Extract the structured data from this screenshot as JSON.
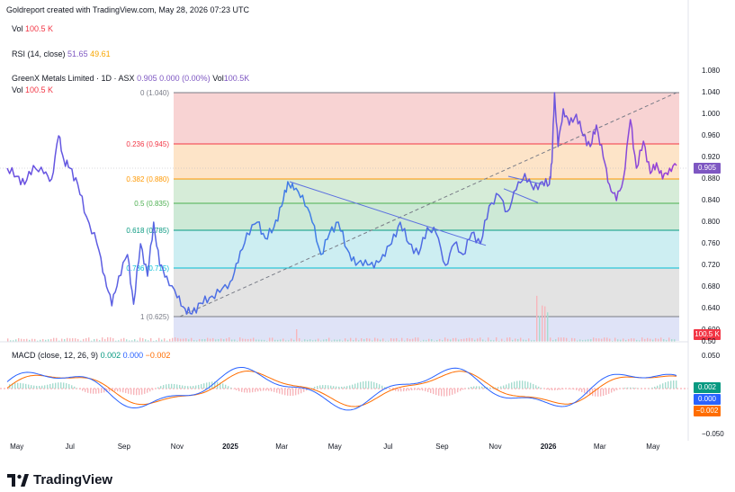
{
  "attribution": "Goldreport created with TradingView.com, May 28, 2026 07:23 UTC",
  "vol_top": {
    "label": "Vol",
    "value": "100.5 K"
  },
  "rsi": {
    "label": "RSI (14, close)",
    "v1": "51.65",
    "v2": "49.61"
  },
  "symbol": {
    "name": "GreenX Metals Limited · 1D · ASX",
    "price": "0.905",
    "change": "0.000 (0.00%)",
    "vol_label": "Vol",
    "vol_value": "100.5K"
  },
  "vol_row": {
    "label": "Vol",
    "value": "100.5 K"
  },
  "macd": {
    "label": "MACD (close, 12, 26, 9)",
    "v1": "0.002",
    "v2": "0.000",
    "v3": "−0.002"
  },
  "logo": "TradingView",
  "colors": {
    "line": "#5b6fe0",
    "accent": "#7e57c2",
    "macd": "#2962ff",
    "signal": "#ff6d00"
  },
  "chart_data": {
    "type": "line",
    "price_axis": [
      "1.080",
      "1.040",
      "1.000",
      "0.960",
      "0.920",
      "0.880",
      "0.840",
      "0.800",
      "0.760",
      "0.720",
      "0.680",
      "0.640",
      "0.600"
    ],
    "ylim": [
      0.6,
      1.08
    ],
    "x_labels": [
      {
        "text": "May",
        "date": "2024-05-01",
        "bold": false
      },
      {
        "text": "Jul",
        "date": "2024-07-01",
        "bold": false
      },
      {
        "text": "Sep",
        "date": "2024-09-01",
        "bold": false
      },
      {
        "text": "Nov",
        "date": "2024-11-01",
        "bold": false
      },
      {
        "text": "2025",
        "date": "2025-01-01",
        "bold": true
      },
      {
        "text": "Mar",
        "date": "2025-03-01",
        "bold": false
      },
      {
        "text": "May",
        "date": "2025-05-01",
        "bold": false
      },
      {
        "text": "Jul",
        "date": "2025-07-01",
        "bold": false
      },
      {
        "text": "Sep",
        "date": "2025-09-01",
        "bold": false
      },
      {
        "text": "Nov",
        "date": "2025-11-01",
        "bold": false
      },
      {
        "text": "2026",
        "date": "2026-01-01",
        "bold": true
      },
      {
        "text": "Mar",
        "date": "2026-03-01",
        "bold": false
      },
      {
        "text": "May",
        "date": "2026-05-01",
        "bold": false
      }
    ],
    "fib_levels": [
      {
        "label": "0 (1.040)",
        "value": 1.04,
        "color": "#787b86",
        "fill": "#f8d3d3"
      },
      {
        "label": "0.236 (0.945)",
        "value": 0.945,
        "color": "#f23645",
        "fill": "#fde4c8"
      },
      {
        "label": "0.382 (0.880)",
        "value": 0.88,
        "color": "#ff9800",
        "fill": "#d6ecd8"
      },
      {
        "label": "0.5 (0.835)",
        "value": 0.835,
        "color": "#4caf50",
        "fill": "#cde9d6"
      },
      {
        "label": "0.618 (0.785)",
        "value": 0.785,
        "color": "#089981",
        "fill": "#cdeef2"
      },
      {
        "label": "0.786 (0.715)",
        "value": 0.715,
        "color": "#00bcd4",
        "fill": "#e3e3e3"
      },
      {
        "label": "1 (0.625)",
        "value": 0.625,
        "color": "#787b86",
        "fill": "#dfe3f7"
      }
    ],
    "series": [
      {
        "values": [
          [
            "2024-04-20",
            0.9
          ],
          [
            "2024-05-01",
            0.885
          ],
          [
            "2024-05-10",
            0.87
          ],
          [
            "2024-05-20",
            0.905
          ],
          [
            "2024-06-01",
            0.89
          ],
          [
            "2024-06-10",
            0.88
          ],
          [
            "2024-06-18",
            0.96
          ],
          [
            "2024-06-24",
            0.915
          ],
          [
            "2024-07-01",
            0.9
          ],
          [
            "2024-07-10",
            0.87
          ],
          [
            "2024-07-20",
            0.81
          ],
          [
            "2024-08-01",
            0.76
          ],
          [
            "2024-08-10",
            0.7
          ],
          [
            "2024-08-18",
            0.645
          ],
          [
            "2024-08-26",
            0.7
          ],
          [
            "2024-09-05",
            0.74
          ],
          [
            "2024-09-12",
            0.648
          ],
          [
            "2024-09-20",
            0.76
          ],
          [
            "2024-09-28",
            0.7
          ],
          [
            "2024-10-05",
            0.8
          ],
          [
            "2024-10-12",
            0.72
          ],
          [
            "2024-10-20",
            0.7
          ],
          [
            "2024-11-01",
            0.66
          ],
          [
            "2024-11-10",
            0.64
          ],
          [
            "2024-11-18",
            0.63
          ],
          [
            "2024-11-28",
            0.65
          ],
          [
            "2024-12-08",
            0.66
          ],
          [
            "2024-12-20",
            0.67
          ],
          [
            "2025-01-01",
            0.69
          ],
          [
            "2025-01-10",
            0.725
          ],
          [
            "2025-01-20",
            0.78
          ],
          [
            "2025-02-01",
            0.8
          ],
          [
            "2025-02-10",
            0.77
          ],
          [
            "2025-02-20",
            0.79
          ],
          [
            "2025-03-01",
            0.83
          ],
          [
            "2025-03-08",
            0.875
          ],
          [
            "2025-03-15",
            0.86
          ],
          [
            "2025-03-25",
            0.85
          ],
          [
            "2025-04-05",
            0.8
          ],
          [
            "2025-04-15",
            0.74
          ],
          [
            "2025-04-25",
            0.78
          ],
          [
            "2025-05-05",
            0.8
          ],
          [
            "2025-05-15",
            0.75
          ],
          [
            "2025-05-25",
            0.72
          ],
          [
            "2025-06-05",
            0.73
          ],
          [
            "2025-06-15",
            0.715
          ],
          [
            "2025-06-25",
            0.74
          ],
          [
            "2025-07-05",
            0.76
          ],
          [
            "2025-07-15",
            0.8
          ],
          [
            "2025-07-25",
            0.76
          ],
          [
            "2025-08-05",
            0.74
          ],
          [
            "2025-08-15",
            0.79
          ],
          [
            "2025-08-25",
            0.78
          ],
          [
            "2025-09-05",
            0.72
          ],
          [
            "2025-09-15",
            0.76
          ],
          [
            "2025-09-25",
            0.74
          ],
          [
            "2025-10-05",
            0.78
          ],
          [
            "2025-10-15",
            0.76
          ],
          [
            "2025-10-25",
            0.83
          ],
          [
            "2025-11-05",
            0.85
          ],
          [
            "2025-11-15",
            0.82
          ],
          [
            "2025-11-25",
            0.86
          ],
          [
            "2025-12-05",
            0.89
          ],
          [
            "2025-12-15",
            0.86
          ],
          [
            "2025-12-25",
            0.875
          ],
          [
            "2026-01-02",
            0.87
          ],
          [
            "2026-01-05",
            0.91
          ],
          [
            "2026-01-08",
            1.04
          ],
          [
            "2026-01-12",
            0.94
          ],
          [
            "2026-01-18",
            1.01
          ],
          [
            "2026-01-25",
            0.98
          ],
          [
            "2026-02-02",
            1.0
          ],
          [
            "2026-02-10",
            0.96
          ],
          [
            "2026-02-18",
            0.94
          ],
          [
            "2026-02-25",
            0.98
          ],
          [
            "2026-03-05",
            0.92
          ],
          [
            "2026-03-12",
            0.87
          ],
          [
            "2026-03-20",
            0.84
          ],
          [
            "2026-03-28",
            0.88
          ],
          [
            "2026-04-05",
            0.99
          ],
          [
            "2026-04-12",
            0.9
          ],
          [
            "2026-04-20",
            0.95
          ],
          [
            "2026-04-28",
            0.89
          ],
          [
            "2026-05-05",
            0.91
          ],
          [
            "2026-05-12",
            0.88
          ],
          [
            "2026-05-20",
            0.9
          ],
          [
            "2026-05-28",
            0.905
          ]
        ]
      }
    ]
  },
  "volume_axis": "0.50",
  "macd_axis": [
    "0.050",
    "−0.050"
  ]
}
